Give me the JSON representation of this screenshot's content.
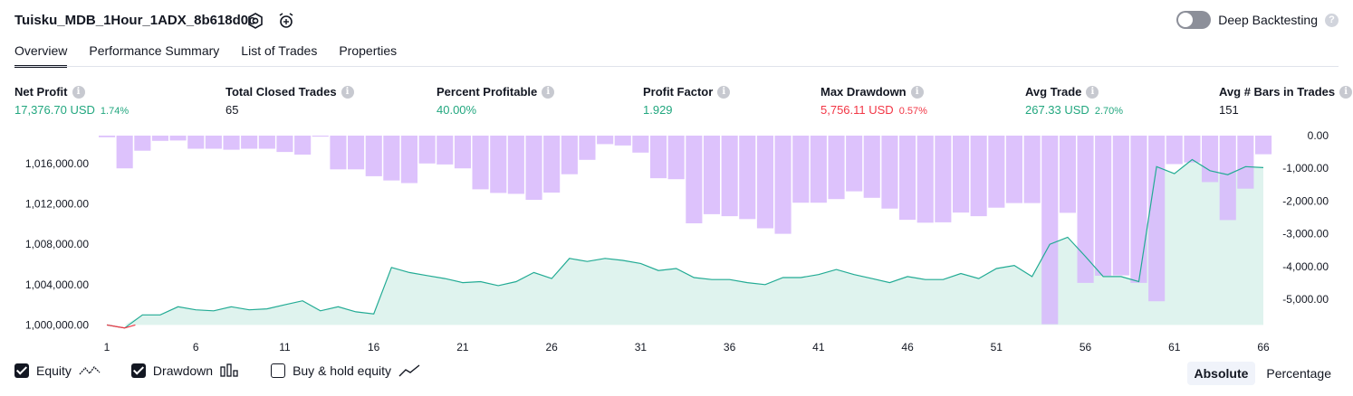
{
  "header": {
    "title": "Tuisku_MDB_1Hour_1ADX_8b618d0c",
    "deep_backtesting_label": "Deep Backtesting",
    "help_mark": "?"
  },
  "tabs": [
    {
      "label": "Overview",
      "active": true
    },
    {
      "label": "Performance Summary",
      "active": false
    },
    {
      "label": "List of Trades",
      "active": false
    },
    {
      "label": "Properties",
      "active": false
    }
  ],
  "info_mark": "i",
  "stats": {
    "net_profit": {
      "label": "Net Profit",
      "value": "17,376.70 USD",
      "pct": "1.74%"
    },
    "total_closed_trades": {
      "label": "Total Closed Trades",
      "value": "65"
    },
    "percent_profitable": {
      "label": "Percent Profitable",
      "value": "40.00%"
    },
    "profit_factor": {
      "label": "Profit Factor",
      "value": "1.929"
    },
    "max_drawdown": {
      "label": "Max Drawdown",
      "value": "5,756.11 USD",
      "pct": "0.57%"
    },
    "avg_trade": {
      "label": "Avg Trade",
      "value": "267.33 USD",
      "pct": "2.70%"
    },
    "avg_bars": {
      "label": "Avg # Bars in Trades",
      "value": "151"
    }
  },
  "legend": {
    "equity": {
      "label": "Equity",
      "checked": true
    },
    "drawdown": {
      "label": "Drawdown",
      "checked": true
    },
    "buy_hold": {
      "label": "Buy & hold equity",
      "checked": false
    }
  },
  "mode": {
    "absolute": "Absolute",
    "percentage": "Percentage",
    "selected": "Absolute"
  },
  "colors": {
    "equity_line": "#22ab94",
    "equity_fill": "#dff3ee",
    "equity_negative": "#f23645",
    "drawdown_bar": "#d7b7fb",
    "drawdown_overlap": "#b6b4f0",
    "positive_text": "#22a77f",
    "negative_text": "#f23645"
  },
  "chart_data": {
    "type": "bar+area",
    "x": [
      1,
      2,
      3,
      4,
      5,
      6,
      7,
      8,
      9,
      10,
      11,
      12,
      13,
      14,
      15,
      16,
      17,
      18,
      19,
      20,
      21,
      22,
      23,
      24,
      25,
      26,
      27,
      28,
      29,
      30,
      31,
      32,
      33,
      34,
      35,
      36,
      37,
      38,
      39,
      40,
      41,
      42,
      43,
      44,
      45,
      46,
      47,
      48,
      49,
      50,
      51,
      52,
      53,
      54,
      55,
      56,
      57,
      58,
      59,
      60,
      61,
      62,
      63,
      64,
      65,
      66
    ],
    "x_ticks": [
      "1",
      "6",
      "11",
      "16",
      "21",
      "26",
      "31",
      "36",
      "41",
      "46",
      "51",
      "56",
      "61",
      "66"
    ],
    "x_tick_values": [
      1,
      6,
      11,
      16,
      21,
      26,
      31,
      36,
      41,
      46,
      51,
      56,
      61,
      66
    ],
    "left_axis": {
      "ticks": [
        "1,000,000.00",
        "1,004,000.00",
        "1,008,000.00",
        "1,012,000.00",
        "1,016,000.00"
      ],
      "tick_values": [
        1000000,
        1004000,
        1008000,
        1012000,
        1016000
      ],
      "range": [
        999500,
        1017700
      ]
    },
    "right_axis": {
      "ticks": [
        "0.00",
        "-1,000.00",
        "-2,000.00",
        "-3,000.00",
        "-4,000.00",
        "-5,000.00"
      ],
      "tick_values": [
        0,
        -1000,
        -2000,
        -3000,
        -4000,
        -5000
      ],
      "range": [
        -5800,
        0
      ]
    },
    "series": [
      {
        "name": "Equity",
        "axis": "left",
        "values": [
          1000000,
          999700,
          1001000,
          1001000,
          1001800,
          1001500,
          1001400,
          1001800,
          1001500,
          1001600,
          1002000,
          1002400,
          1001400,
          1001800,
          1001300,
          1001100,
          1005700,
          1005200,
          1004900,
          1004600,
          1004200,
          1004300,
          1003900,
          1004300,
          1005200,
          1004600,
          1006600,
          1006300,
          1006600,
          1006400,
          1006100,
          1005400,
          1005600,
          1004700,
          1004500,
          1004500,
          1004200,
          1004000,
          1004700,
          1004700,
          1005000,
          1005500,
          1005000,
          1004600,
          1004200,
          1004800,
          1004500,
          1004500,
          1005100,
          1004600,
          1005600,
          1005900,
          1004800,
          1008000,
          1008700,
          1006800,
          1004800,
          1004800,
          1004300,
          1015700,
          1015000,
          1016400,
          1015300,
          1014900,
          1015700,
          1015600
        ]
      },
      {
        "name": "Drawdown",
        "axis": "right",
        "values": [
          -50,
          -1000,
          -460,
          -160,
          -150,
          -400,
          -400,
          -430,
          -400,
          -400,
          -500,
          -580,
          -30,
          -1030,
          -1030,
          -1240,
          -1370,
          -1450,
          -850,
          -880,
          -1000,
          -1640,
          -1750,
          -1780,
          -1960,
          -1740,
          -1180,
          -740,
          -260,
          -300,
          -520,
          -1300,
          -1330,
          -2680,
          -2400,
          -2460,
          -2550,
          -2830,
          -3000,
          -2050,
          -2050,
          -1940,
          -1700,
          -1900,
          -2230,
          -2570,
          -2660,
          -2650,
          -2350,
          -2460,
          -2200,
          -2060,
          -2060,
          -5760,
          -2360,
          -4500,
          -4280,
          -4270,
          -4500,
          -5060,
          -870,
          -820,
          -1420,
          -2580,
          -1620,
          -570
        ]
      }
    ]
  }
}
